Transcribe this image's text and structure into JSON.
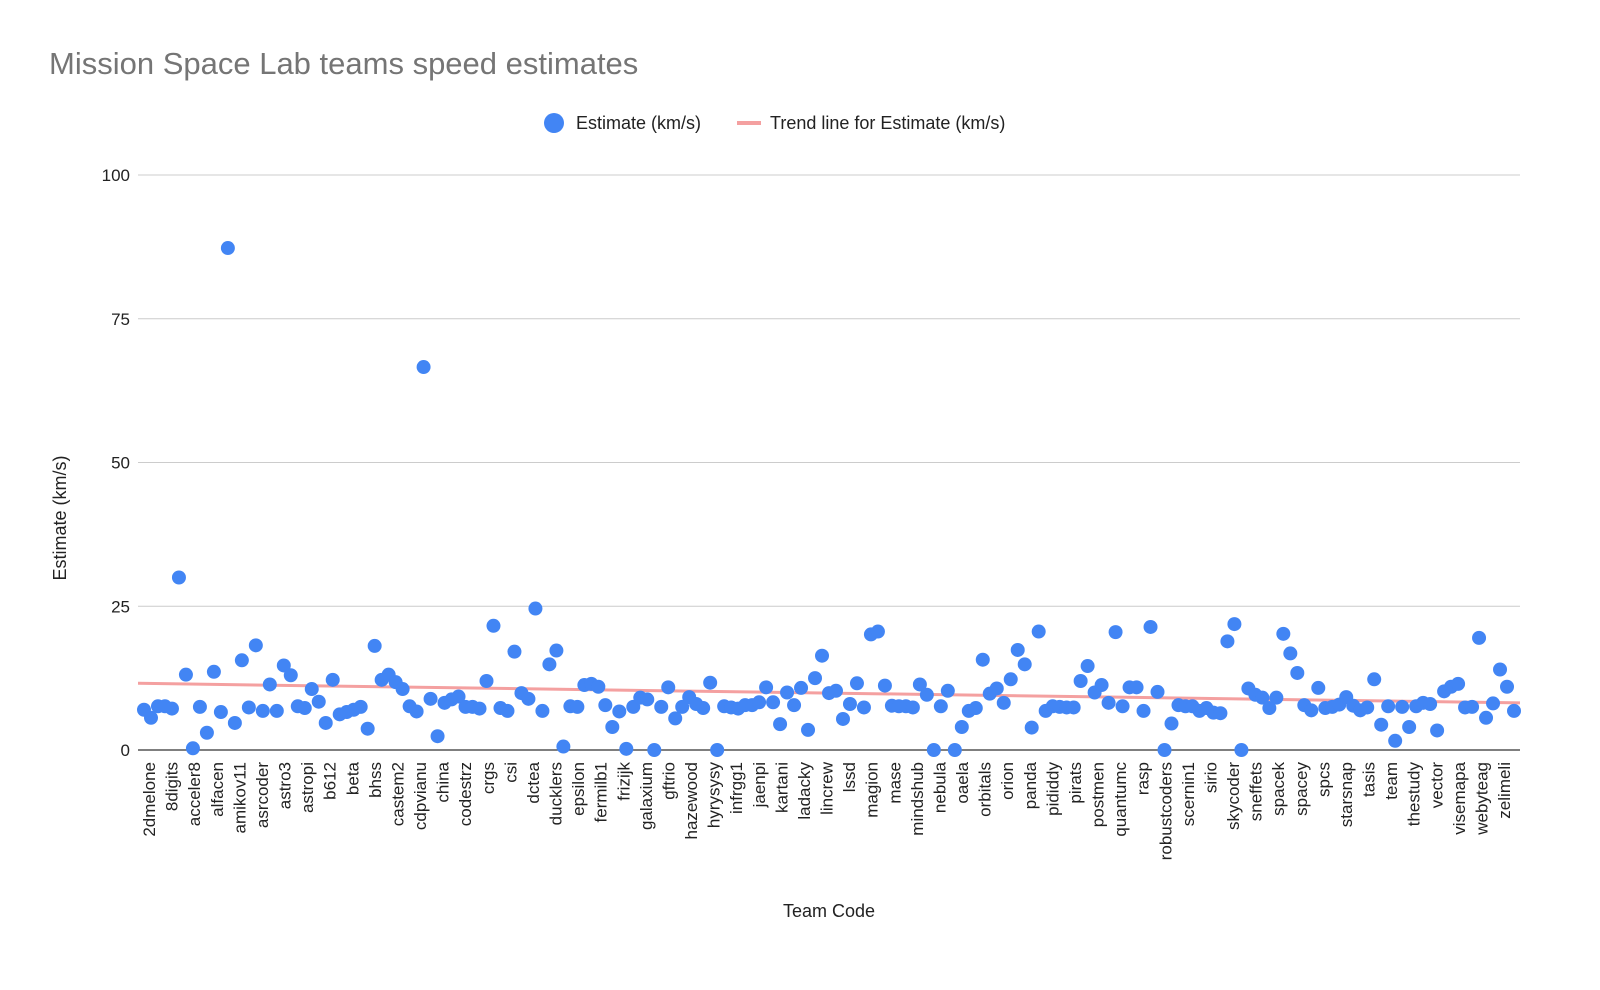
{
  "chart_data": {
    "type": "scatter",
    "title": "Mission Space Lab teams speed estimates",
    "xlabel": "Team Code",
    "ylabel": "Estimate (km/s)",
    "ylim": [
      0,
      100
    ],
    "yticks": [
      0,
      25,
      50,
      75,
      100
    ],
    "grid": true,
    "legend_position": "top",
    "legend": [
      "Estimate (km/s)",
      "Trend line for Estimate (km/s)"
    ],
    "colors": {
      "points": "#4285F4",
      "trend": "#F4A0A0",
      "grid": "#cccccc"
    },
    "x_tick_labels": [
      "2dmelone",
      "8digits",
      "acceler8",
      "alfacen",
      "amikov11",
      "asrcoder",
      "astro3",
      "astropi",
      "b612",
      "beta",
      "bhss",
      "castem2",
      "cdpvianu",
      "china",
      "codestrz",
      "crgs",
      "csi",
      "dctea",
      "ducklers",
      "epsilon",
      "fermilb1",
      "frizijk",
      "galaxium",
      "gftrio",
      "hazewood",
      "hyrysysy",
      "infrgg1",
      "jaenpi",
      "kartani",
      "ladacky",
      "lincrew",
      "lssd",
      "magion",
      "mase",
      "mindshub",
      "nebula",
      "oaela",
      "orbitals",
      "orion",
      "panda",
      "pididdy",
      "pirats",
      "postmen",
      "quantumc",
      "rasp",
      "robustcoders",
      "scernin1",
      "sirio",
      "skycoder",
      "sneffets",
      "spacek",
      "spacey",
      "spcs",
      "starsnap",
      "tasis",
      "team",
      "thestudy",
      "vector",
      "visemapa",
      "webyteag",
      "zelimeli"
    ],
    "values": [
      7.0,
      5.6,
      7.6,
      7.6,
      7.2,
      30.0,
      13.1,
      0.3,
      7.5,
      3.0,
      13.6,
      6.6,
      87.3,
      4.7,
      15.6,
      7.4,
      18.2,
      6.8,
      11.4,
      6.8,
      14.7,
      13.0,
      7.6,
      7.3,
      10.6,
      8.4,
      4.7,
      12.2,
      6.2,
      6.6,
      7.0,
      7.5,
      3.7,
      18.1,
      12.2,
      13.1,
      11.8,
      10.6,
      7.6,
      6.7,
      66.6,
      8.9,
      2.4,
      8.2,
      8.8,
      9.3,
      7.5,
      7.5,
      7.2,
      12.0,
      21.6,
      7.3,
      6.8,
      17.1,
      9.9,
      8.9,
      24.6,
      6.8,
      14.9,
      17.3,
      0.6,
      7.6,
      7.5,
      11.3,
      11.5,
      11.0,
      7.8,
      4.0,
      6.7,
      0.2,
      7.5,
      9.1,
      8.8,
      0.0,
      7.5,
      10.9,
      5.5,
      7.5,
      9.2,
      8.0,
      7.3,
      11.7,
      0.0,
      7.6,
      7.4,
      7.2,
      7.8,
      7.8,
      8.3,
      10.9,
      8.3,
      4.5,
      10.0,
      7.8,
      10.8,
      3.5,
      12.5,
      16.4,
      9.9,
      10.3,
      5.4,
      8.0,
      11.6,
      7.4,
      20.1,
      20.6,
      11.2,
      7.7,
      7.6,
      7.6,
      7.4,
      11.4,
      9.6,
      0.0,
      7.6,
      10.3,
      0.0,
      4.0,
      6.8,
      7.3,
      15.7,
      9.8,
      10.7,
      8.2,
      12.3,
      17.4,
      14.9,
      3.9,
      20.6,
      6.8,
      7.6,
      7.5,
      7.4,
      7.4,
      12.0,
      14.6,
      10.0,
      11.3,
      8.2,
      20.5,
      7.6,
      10.9,
      10.9,
      6.8,
      21.4,
      10.1,
      0.0,
      4.6,
      7.8,
      7.6,
      7.6,
      6.8,
      7.3,
      6.5,
      6.4,
      18.9,
      21.9,
      0.0,
      10.7,
      9.6,
      9.1,
      7.3,
      9.1,
      20.2,
      16.8,
      13.4,
      7.8,
      6.9,
      10.8,
      7.3,
      7.5,
      7.9,
      9.2,
      7.7,
      6.9,
      7.4,
      12.3,
      4.4,
      7.6,
      1.6,
      7.5,
      4.0,
      7.6,
      8.2,
      8.0,
      3.4,
      10.2,
      11.0,
      11.5,
      7.4,
      7.5,
      19.5,
      5.6,
      8.1,
      14.0,
      11.0,
      6.8
    ],
    "trend_line": {
      "name": "Trend line for Estimate (km/s)",
      "start": 11.6,
      "end": 8.2
    }
  }
}
